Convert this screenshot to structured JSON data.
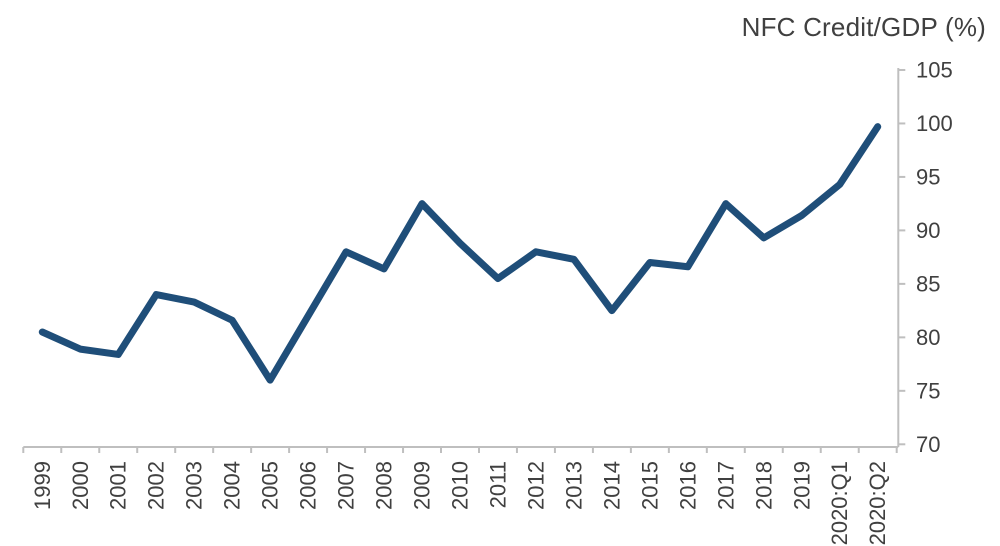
{
  "title": "NFC Credit/GDP (%)",
  "colors": {
    "line": "#1F4E79",
    "axis": "#BFBFBF",
    "text": "#404040",
    "background": "#FFFFFF"
  },
  "chart_data": {
    "type": "line",
    "title": "NFC Credit/GDP (%)",
    "categories": [
      "1999",
      "2000",
      "2001",
      "2002",
      "2003",
      "2004",
      "2005",
      "2006",
      "2007",
      "2008",
      "2009",
      "2010",
      "2011",
      "2012",
      "2013",
      "2014",
      "2015",
      "2016",
      "2017",
      "2018",
      "2019",
      "2020:Q1",
      "2020:Q2"
    ],
    "series": [
      {
        "name": "NFC Credit/GDP (%)",
        "values": [
          80.5,
          78.9,
          78.4,
          84.0,
          83.3,
          81.6,
          76.0,
          82.0,
          88.0,
          86.4,
          92.5,
          88.8,
          85.5,
          88.0,
          87.3,
          82.5,
          87.0,
          86.6,
          92.5,
          89.3,
          91.4,
          94.3,
          99.7
        ]
      }
    ],
    "xlabel": "",
    "ylabel": "",
    "ylim": [
      70,
      105
    ],
    "yticks": [
      70,
      75,
      80,
      85,
      90,
      95,
      100,
      105
    ],
    "y_axis_side": "right",
    "x_label_rotation": -90,
    "grid": false,
    "legend": "none"
  }
}
